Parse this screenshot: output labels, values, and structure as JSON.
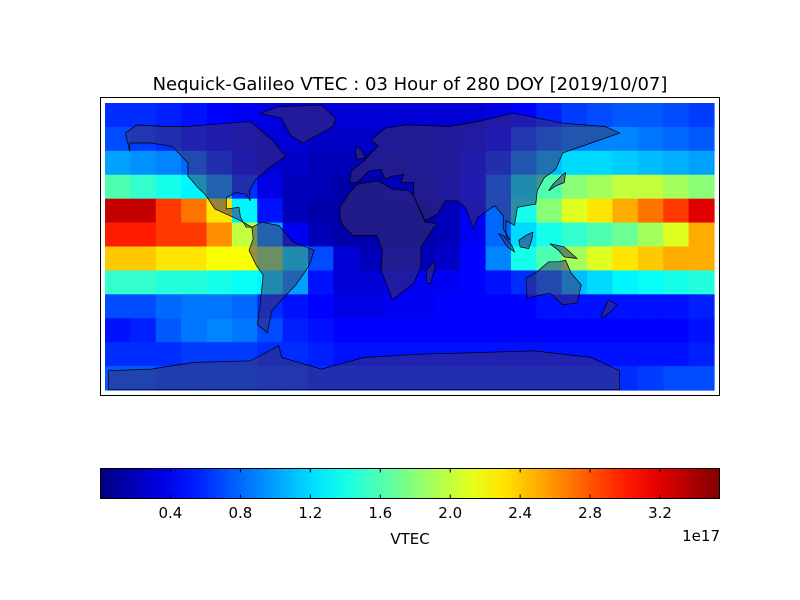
{
  "title": "Nequick-Galileo VTEC : 03 Hour of 280 DOY [2019/10/07]",
  "colorbar": {
    "label": "VTEC",
    "offset_text": "1e17",
    "ticks": [
      "0.4",
      "0.8",
      "1.2",
      "1.6",
      "2.0",
      "2.4",
      "2.8",
      "3.2"
    ],
    "tick_values": [
      0.4,
      0.8,
      1.2,
      1.6,
      2.0,
      2.4,
      2.8,
      3.2
    ],
    "range": [
      0,
      3.54
    ],
    "colormap": "jet"
  },
  "chart_data": {
    "type": "heatmap",
    "title": "Nequick-Galileo VTEC : 03 Hour of 280 DOY [2019/10/07]",
    "units_scale": "1e17",
    "colorbar_label": "VTEC",
    "zlim": [
      0,
      3.54
    ],
    "grid_note_rows": "north to south",
    "values": [
      [
        0.6,
        0.6,
        0.55,
        0.5,
        0.45,
        0.4,
        0.35,
        0.3,
        0.3,
        0.3,
        0.3,
        0.3,
        0.3,
        0.3,
        0.3,
        0.35,
        0.45,
        0.55,
        0.65,
        0.7,
        0.75,
        0.75,
        0.7,
        0.65
      ],
      [
        0.7,
        0.65,
        0.6,
        0.5,
        0.4,
        0.35,
        0.3,
        0.3,
        0.25,
        0.25,
        0.25,
        0.25,
        0.25,
        0.3,
        0.35,
        0.45,
        0.65,
        0.8,
        0.9,
        0.9,
        0.9,
        0.85,
        0.8,
        0.75
      ],
      [
        1.0,
        0.95,
        0.9,
        0.8,
        0.6,
        0.4,
        0.3,
        0.25,
        0.2,
        0.2,
        0.2,
        0.2,
        0.25,
        0.3,
        0.4,
        0.6,
        0.9,
        1.1,
        1.2,
        1.2,
        1.15,
        1.1,
        1.05,
        1.0
      ],
      [
        1.6,
        1.5,
        1.4,
        1.3,
        1.0,
        0.6,
        0.35,
        0.2,
        0.2,
        0.15,
        0.15,
        0.2,
        0.2,
        0.3,
        0.45,
        0.8,
        1.3,
        1.6,
        1.8,
        1.9,
        2.0,
        2.0,
        1.9,
        1.8
      ],
      [
        3.3,
        3.3,
        2.9,
        2.7,
        2.3,
        1.3,
        0.5,
        0.2,
        0.15,
        0.15,
        0.15,
        0.15,
        0.15,
        0.2,
        0.4,
        0.8,
        1.4,
        1.8,
        2.1,
        2.3,
        2.5,
        2.7,
        2.9,
        3.2
      ],
      [
        3.0,
        3.0,
        2.9,
        2.9,
        2.6,
        2.0,
        1.0,
        0.4,
        0.2,
        0.15,
        0.15,
        0.15,
        0.15,
        0.2,
        0.4,
        0.8,
        1.2,
        1.4,
        1.5,
        1.6,
        1.7,
        1.9,
        2.1,
        2.5
      ],
      [
        2.4,
        2.4,
        2.3,
        2.3,
        2.2,
        2.2,
        1.9,
        1.3,
        0.7,
        0.3,
        0.2,
        0.2,
        0.2,
        0.25,
        0.45,
        0.9,
        1.4,
        1.6,
        1.9,
        2.1,
        2.3,
        2.4,
        2.5,
        2.5
      ],
      [
        1.5,
        1.5,
        1.45,
        1.45,
        1.4,
        1.35,
        1.3,
        1.0,
        0.5,
        0.3,
        0.3,
        0.35,
        0.4,
        0.4,
        0.45,
        0.5,
        0.6,
        0.8,
        1.1,
        1.2,
        1.3,
        1.35,
        1.4,
        1.45
      ],
      [
        0.7,
        0.7,
        0.8,
        0.85,
        0.85,
        0.8,
        0.6,
        0.5,
        0.45,
        0.35,
        0.35,
        0.4,
        0.4,
        0.45,
        0.45,
        0.45,
        0.45,
        0.5,
        0.5,
        0.5,
        0.5,
        0.5,
        0.5,
        0.55
      ],
      [
        0.5,
        0.55,
        0.75,
        0.85,
        0.9,
        0.85,
        0.7,
        0.55,
        0.5,
        0.45,
        0.45,
        0.45,
        0.45,
        0.45,
        0.45,
        0.45,
        0.45,
        0.45,
        0.45,
        0.45,
        0.45,
        0.45,
        0.45,
        0.5
      ],
      [
        0.6,
        0.6,
        0.6,
        0.65,
        0.65,
        0.65,
        0.6,
        0.6,
        0.55,
        0.5,
        0.5,
        0.5,
        0.5,
        0.5,
        0.5,
        0.5,
        0.5,
        0.5,
        0.5,
        0.5,
        0.5,
        0.5,
        0.5,
        0.55
      ],
      [
        0.75,
        0.75,
        0.7,
        0.7,
        0.7,
        0.7,
        0.65,
        0.65,
        0.6,
        0.6,
        0.6,
        0.6,
        0.6,
        0.6,
        0.6,
        0.6,
        0.6,
        0.6,
        0.6,
        0.6,
        0.6,
        0.65,
        0.7,
        0.7
      ]
    ]
  }
}
